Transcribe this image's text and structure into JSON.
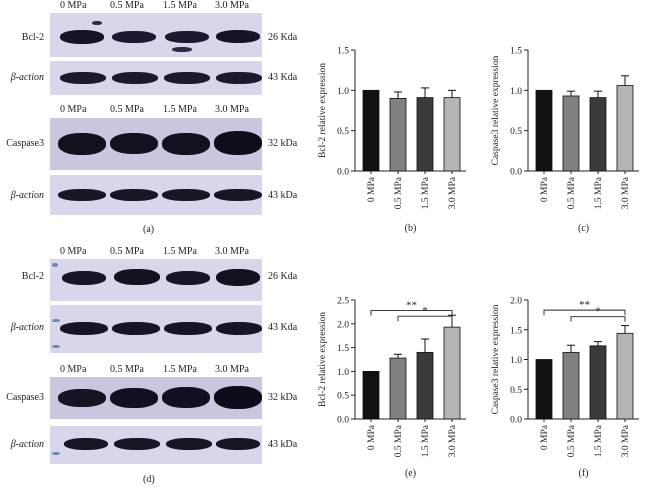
{
  "blots": {
    "lanes": [
      "0 MPa",
      "0.5 MPa",
      "1.5 MPa",
      "3.0 MPa"
    ],
    "bcl2": "Bcl-2",
    "caspase3": "Caspase3",
    "actin": "β-action",
    "kda26": "26 Kda",
    "kda43_upper": "43 Kda",
    "kda32": "32 kDa",
    "kda43_lower": "43 kDa"
  },
  "panels": {
    "a": "(a)",
    "b": "(b)",
    "c": "(c)",
    "d": "(d)",
    "e": "(e)",
    "f": "(f)"
  },
  "chart_data": [
    {
      "id": "b",
      "type": "bar",
      "categories": [
        "0 MPa",
        "0.5 MPa",
        "1.5 MPa",
        "3.0 MPa"
      ],
      "values": [
        1.0,
        0.9,
        0.91,
        0.91
      ],
      "errors": [
        0,
        0.08,
        0.12,
        0.09
      ],
      "ylabel": "Bcl-2 relative expression",
      "ylim": [
        0,
        1.5
      ],
      "yticks": [
        "0.0",
        "0.5",
        "1.0",
        "1.5"
      ],
      "colors": [
        "#111111",
        "#808080",
        "#3a3a3a",
        "#b4b4b4"
      ]
    },
    {
      "id": "c",
      "type": "bar",
      "categories": [
        "0 MPa",
        "0.5 MPa",
        "1.5 MPa",
        "3.0 MPa"
      ],
      "values": [
        1.0,
        0.93,
        0.91,
        1.06
      ],
      "errors": [
        0,
        0.06,
        0.08,
        0.12
      ],
      "ylabel": "Caspase3 relative expression",
      "ylim": [
        0,
        1.5
      ],
      "yticks": [
        "0.0",
        "0.5",
        "1.0",
        "1.5"
      ],
      "colors": [
        "#111111",
        "#808080",
        "#3a3a3a",
        "#b4b4b4"
      ]
    },
    {
      "id": "e",
      "type": "bar",
      "categories": [
        "0 MPa",
        "0.5 MPa",
        "1.5 MPa",
        "3.0 MPa"
      ],
      "values": [
        1.0,
        1.28,
        1.4,
        1.93
      ],
      "errors": [
        0,
        0.08,
        0.28,
        0.25
      ],
      "ylabel": "Bcl-2 relative expression",
      "ylim": [
        0,
        2.5
      ],
      "yticks": [
        "0.0",
        "0.5",
        "1.0",
        "1.5",
        "2.0",
        "2.5"
      ],
      "colors": [
        "#111111",
        "#808080",
        "#3a3a3a",
        "#b4b4b4"
      ],
      "significance": [
        {
          "from": 0,
          "to": 3,
          "label": "**",
          "level": 2.28
        },
        {
          "from": 1,
          "to": 3,
          "label": "*",
          "level": 2.16
        }
      ]
    },
    {
      "id": "f",
      "type": "bar",
      "categories": [
        "0 MPa",
        "0.5 MPa",
        "1.5 MPa",
        "3.0 MPa"
      ],
      "values": [
        1.0,
        1.12,
        1.23,
        1.44
      ],
      "errors": [
        0,
        0.12,
        0.07,
        0.13
      ],
      "ylabel": "Caspase3 relative expression",
      "ylim": [
        0,
        2.0
      ],
      "yticks": [
        "0.0",
        "0.5",
        "1.0",
        "1.5",
        "2.0"
      ],
      "colors": [
        "#111111",
        "#808080",
        "#3a3a3a",
        "#b4b4b4"
      ],
      "significance": [
        {
          "from": 0,
          "to": 3,
          "label": "**",
          "level": 1.83
        },
        {
          "from": 1,
          "to": 3,
          "label": "*",
          "level": 1.72
        }
      ]
    }
  ]
}
